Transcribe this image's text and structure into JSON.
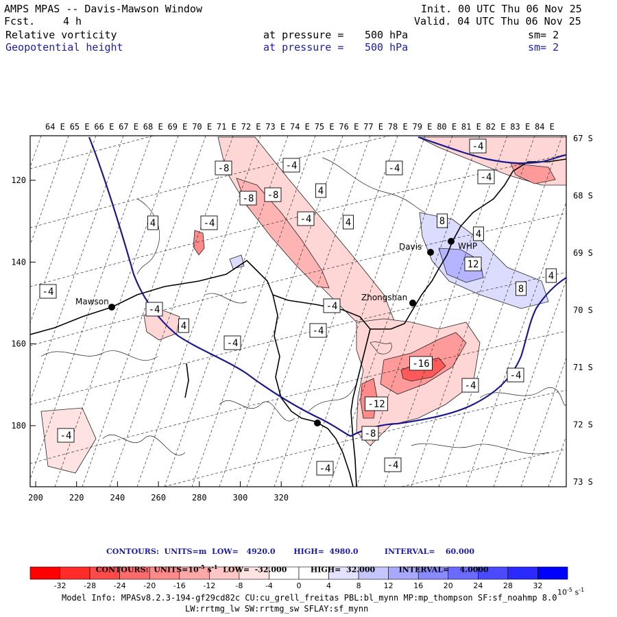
{
  "header": {
    "title": "AMPS MPAS -- Davis-Mawson Window",
    "fcst_label": "Fcst.",
    "fcst_value": "4 h",
    "init": "Init. 00 UTC Thu 06 Nov 25",
    "valid": "Valid. 04 UTC Thu 06 Nov 25",
    "field1": {
      "name": "Relative vorticity",
      "level_label": "at pressure =",
      "level": "500 hPa",
      "sm": "sm= 2"
    },
    "field2": {
      "name": "Geopotential height",
      "level_label": "at pressure =",
      "level": "500 hPa",
      "sm": "sm= 2"
    }
  },
  "axes": {
    "top_longitudes": [
      "64 E",
      "65 E",
      "66 E",
      "67 E",
      "68 E",
      "69 E",
      "70 E",
      "71 E",
      "72 E",
      "73 E",
      "74 E",
      "75 E",
      "76 E",
      "77 E",
      "78 E",
      "79 E",
      "80 E",
      "81 E",
      "82 E",
      "83 E",
      "84 E"
    ],
    "right_latitudes": [
      "67 S",
      "68 S",
      "69 S",
      "70 S",
      "71 S",
      "72 S",
      "73 S"
    ],
    "left_ticks": [
      "120",
      "140",
      "160",
      "180"
    ],
    "bottom_ticks": [
      "200",
      "220",
      "240",
      "260",
      "280",
      "300",
      "320"
    ]
  },
  "stations": {
    "mawson": "Mawson",
    "davis": "Davis",
    "zhongshan": "Zhongshan",
    "whp": "WHP"
  },
  "contour_labels": {
    "neg4": "-4",
    "neg8": "-8",
    "neg12": "-12",
    "neg16": "-16",
    "pos4": "4",
    "pos8": "8",
    "pos12": "12"
  },
  "legend": {
    "contours_line1": "CONTOURS:  UNITS=m  LOW=   4920.0       HIGH=  4980.0          INTERVAL=    60.000",
    "contours_line2_prefix": "CONTOURS:  UNITS=10",
    "contours_line2_exp": "-5",
    "contours_line2_s": " s",
    "contours_line2_sexp": "-1",
    "contours_line2_rest": "  LOW=  -32.000         HIGH=  32.000         INTERVAL=    4.0000",
    "colorbar_ticks": [
      "-32",
      "-28",
      "-24",
      "-20",
      "-16",
      "-12",
      "-8",
      "-4",
      "0",
      "4",
      "8",
      "12",
      "16",
      "20",
      "24",
      "28",
      "32"
    ],
    "colorbar_unit": "10",
    "colorbar_unit_exp": "-5",
    "colorbar_unit_s": " s",
    "colorbar_unit_sexp": "-1",
    "colorbar_colors": [
      "#ff0000",
      "#ff2a2a",
      "#ff4a4a",
      "#ff6b6b",
      "#ff8a8a",
      "#ffa8a8",
      "#ffc6c6",
      "#ffe2e2",
      "#ffffff",
      "#ffffff",
      "#e2e2ff",
      "#c6c6ff",
      "#a8a8ff",
      "#8a8aff",
      "#6b6bff",
      "#4a4aff",
      "#2a2aff",
      "#0000ff"
    ]
  },
  "model_info": {
    "line1": "Model Info: MPASv8.2.3-194-gf29cd82c CU:cu_grell_freitas PBL:bl_mynn MP:mp_thompson SF:sf_noahmp 8.0",
    "line2": "LW:rrtmg_lw SW:rrtmg_sw SFLAY:sf_mynn"
  },
  "colors": {
    "height_contour": "#1a1a8c",
    "neg_fill_light": "#ffd6d6",
    "neg_fill_mid": "#ff9a9a",
    "neg_fill_strong": "#ff5a5a",
    "pos_fill_light": "#dcdcff",
    "pos_fill_mid": "#b4b4ff"
  }
}
